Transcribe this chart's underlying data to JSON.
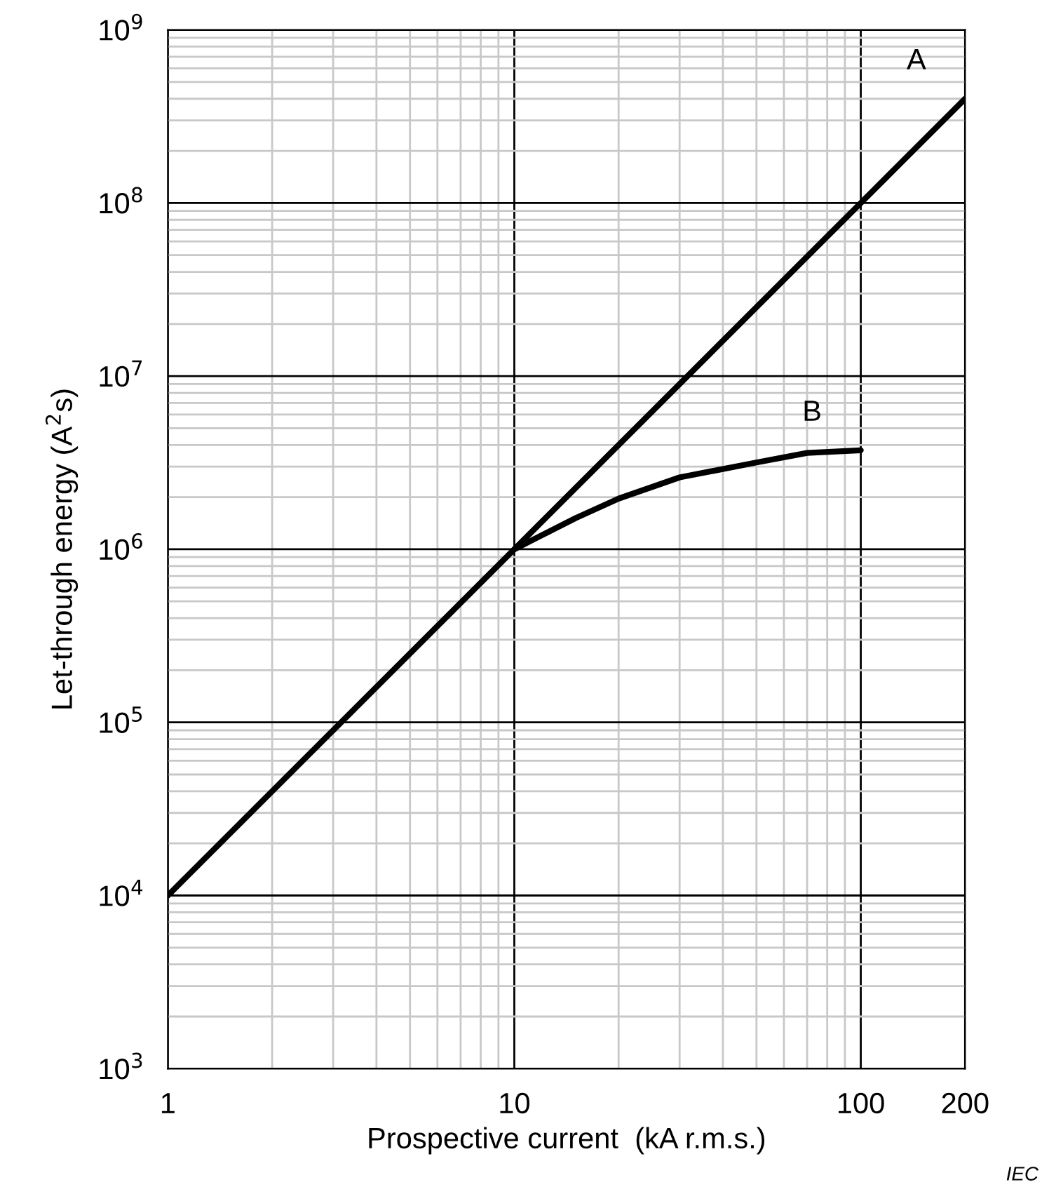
{
  "chart_data": {
    "type": "line",
    "xlabel": "Prospective current  (kA r.m.s.)",
    "ylabel": "Let-through energy (A$^{2}$s)",
    "series": [
      {
        "color": "#000000",
        "x": [
          1,
          200
        ],
        "values": [
          10000,
          400000000
        ]
      },
      {
        "color": "#000000",
        "x": [
          10,
          15,
          20,
          30,
          50,
          70,
          100
        ],
        "values": [
          1000000,
          1510000,
          1960000,
          2600000,
          3170000,
          3600000,
          3730000
        ]
      }
    ],
    "log": "xy",
    "xlim": [
      1,
      200
    ],
    "ylim": [
      1000,
      1000000000
    ],
    "xticks": [
      1,
      10,
      100,
      200
    ],
    "yticks": [
      {
        "value": 1000,
        "label": "10$^{3}$"
      },
      {
        "value": 10000,
        "label": "10$^{4}$"
      },
      {
        "value": 100000,
        "label": "10$^{5}$"
      },
      {
        "value": 1000000,
        "label": "10$^{6}$"
      },
      {
        "value": 10000000,
        "label": "10$^{7}$"
      },
      {
        "value": 100000000,
        "label": "10$^{8}$"
      },
      {
        "value": 1000000000,
        "label": "10$^{9}$"
      }
    ],
    "grid": true,
    "line_style": "solid",
    "annotations": [
      "A",
      "B",
      "IEC"
    ]
  }
}
